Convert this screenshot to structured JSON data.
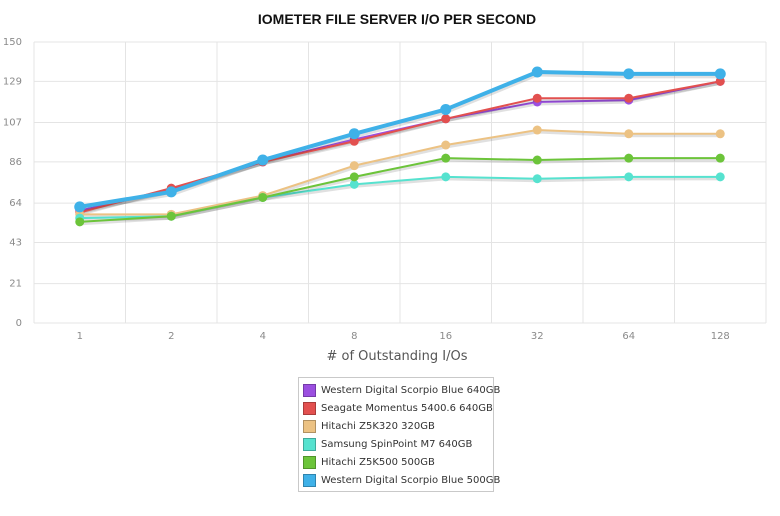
{
  "chart_data": {
    "type": "line",
    "title": "IOMETER FILE SERVER I/O PER SECOND",
    "xlabel": "# of Outstanding I/Os",
    "ylabel": "",
    "categories": [
      "1",
      "2",
      "4",
      "8",
      "16",
      "32",
      "64",
      "128"
    ],
    "y_ticks": [
      "0",
      "21",
      "43",
      "64",
      "86",
      "107",
      "129",
      "150"
    ],
    "ylim": [
      0,
      150
    ],
    "grid": true,
    "legend_position": "bottom",
    "series": [
      {
        "name": "Western Digital Scorpio Blue 640GB",
        "color": "#9b4fe0",
        "values": [
          60,
          71,
          86,
          98,
          109,
          118,
          119,
          129
        ]
      },
      {
        "name": "Seagate Momentus 5400.6 640GB",
        "color": "#e2504f",
        "values": [
          59,
          72,
          86,
          97,
          109,
          120,
          120,
          129
        ]
      },
      {
        "name": "Hitachi Z5K320 320GB",
        "color": "#ecc283",
        "values": [
          58,
          58,
          68,
          84,
          95,
          103,
          101,
          101
        ]
      },
      {
        "name": "Samsung SpinPoint M7 640GB",
        "color": "#56e2cf",
        "values": [
          56,
          57,
          67,
          74,
          78,
          77,
          78,
          78
        ]
      },
      {
        "name": "Hitachi Z5K500 500GB",
        "color": "#6cc43a",
        "values": [
          54,
          57,
          67,
          78,
          88,
          87,
          88,
          88
        ]
      },
      {
        "name": "Western Digital Scorpio Blue 500GB",
        "color": "#3fb1e8",
        "values": [
          62,
          70,
          87,
          101,
          114,
          134,
          133,
          133
        ]
      }
    ]
  }
}
